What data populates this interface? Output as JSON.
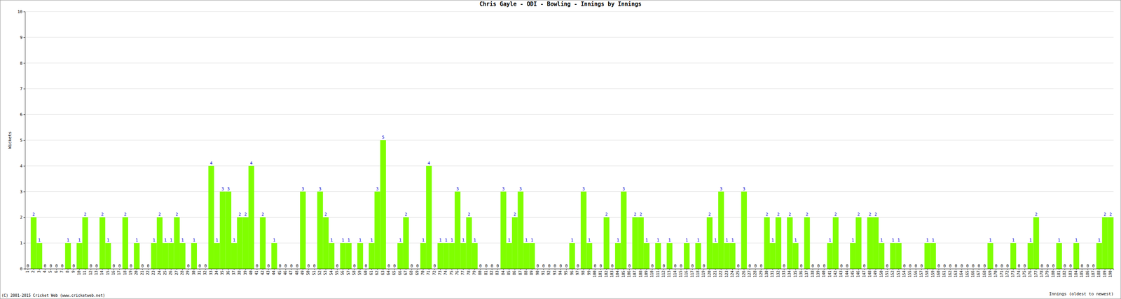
{
  "chart_data": {
    "type": "bar",
    "title": "Chris Gayle - ODI - Bowling - Innings by Innings",
    "x_label": "Innings (oldest to newest)",
    "y_label": "Wickets",
    "annotations": [
      "(C) 2001-2015 Cricket Web (www.cricketweb.net)"
    ],
    "categories": [
      "1",
      "2",
      "3",
      "4",
      "5",
      "6",
      "7",
      "8",
      "9",
      "10",
      "11",
      "12",
      "13",
      "14",
      "15",
      "16",
      "17",
      "18",
      "19",
      "20",
      "21",
      "22",
      "23",
      "24",
      "25",
      "26",
      "27",
      "28",
      "29",
      "30",
      "31",
      "32",
      "33",
      "34",
      "35",
      "36",
      "37",
      "38",
      "39",
      "40",
      "41",
      "42",
      "43",
      "44",
      "45",
      "46",
      "47",
      "48",
      "49",
      "50",
      "51",
      "52",
      "53",
      "54",
      "55",
      "56",
      "57",
      "58",
      "59",
      "60",
      "61",
      "62",
      "63",
      "64",
      "65",
      "66",
      "67",
      "68",
      "69",
      "70",
      "71",
      "72",
      "73",
      "74",
      "75",
      "76",
      "77",
      "78",
      "79",
      "80",
      "81",
      "82",
      "83",
      "84",
      "85",
      "86",
      "87",
      "88",
      "89",
      "90",
      "91",
      "92",
      "93",
      "94",
      "95",
      "96",
      "97",
      "98",
      "99",
      "100",
      "101",
      "102",
      "103",
      "104",
      "105",
      "106",
      "107",
      "108",
      "109",
      "110",
      "111",
      "112",
      "113",
      "114",
      "115",
      "116",
      "117",
      "118",
      "119",
      "120",
      "121",
      "122",
      "123",
      "124",
      "125",
      "126",
      "127",
      "128",
      "129",
      "130",
      "131",
      "132",
      "133",
      "134",
      "135",
      "136",
      "137",
      "138",
      "139",
      "140",
      "141",
      "142",
      "143",
      "144",
      "145",
      "146",
      "147",
      "148",
      "149",
      "150",
      "151",
      "152",
      "153",
      "154",
      "155",
      "156",
      "157",
      "158",
      "159",
      "160",
      "161",
      "162",
      "163",
      "164",
      "165",
      "166",
      "167",
      "168",
      "169",
      "170",
      "171",
      "172",
      "173",
      "174",
      "175",
      "176",
      "177",
      "178",
      "179",
      "180",
      "181",
      "182",
      "183",
      "184",
      "185",
      "186",
      "187",
      "188",
      "189",
      "190"
    ],
    "values": [
      0,
      2,
      1,
      0,
      0,
      0,
      0,
      1,
      0,
      1,
      2,
      0,
      0,
      2,
      1,
      0,
      0,
      2,
      0,
      1,
      0,
      0,
      1,
      2,
      1,
      1,
      2,
      1,
      0,
      1,
      0,
      0,
      4,
      1,
      3,
      3,
      1,
      2,
      2,
      4,
      0,
      2,
      0,
      1,
      0,
      0,
      0,
      0,
      3,
      0,
      0,
      3,
      2,
      1,
      0,
      1,
      1,
      0,
      1,
      0,
      1,
      3,
      5,
      0,
      0,
      1,
      2,
      0,
      0,
      1,
      4,
      0,
      1,
      1,
      1,
      3,
      1,
      2,
      1,
      0,
      0,
      0,
      0,
      3,
      1,
      2,
      3,
      1,
      1,
      0,
      0,
      0,
      0,
      0,
      0,
      1,
      0,
      3,
      1,
      0,
      0,
      2,
      0,
      1,
      3,
      0,
      2,
      2,
      1,
      0,
      1,
      0,
      1,
      0,
      0,
      1,
      0,
      1,
      0,
      2,
      1,
      3,
      1,
      1,
      0,
      3,
      0,
      0,
      0,
      2,
      1,
      2,
      0,
      2,
      1,
      0,
      2,
      0,
      0,
      0,
      1,
      2,
      0,
      0,
      1,
      2,
      0,
      2,
      2,
      1,
      0,
      1,
      1,
      0,
      0,
      0,
      0,
      1,
      1,
      0,
      0,
      0,
      0,
      0,
      0,
      0,
      0,
      0,
      1,
      0,
      0,
      0,
      1,
      0,
      0,
      1,
      2,
      0,
      0,
      0,
      1,
      0,
      0,
      1,
      0,
      0,
      0,
      1,
      2,
      2
    ],
    "color": "#80ff00",
    "ylim": [
      0,
      10
    ],
    "yticks": [
      0,
      1,
      2,
      3,
      4,
      5,
      6,
      7,
      8,
      9,
      10
    ],
    "grid": true,
    "data_labels": true
  }
}
